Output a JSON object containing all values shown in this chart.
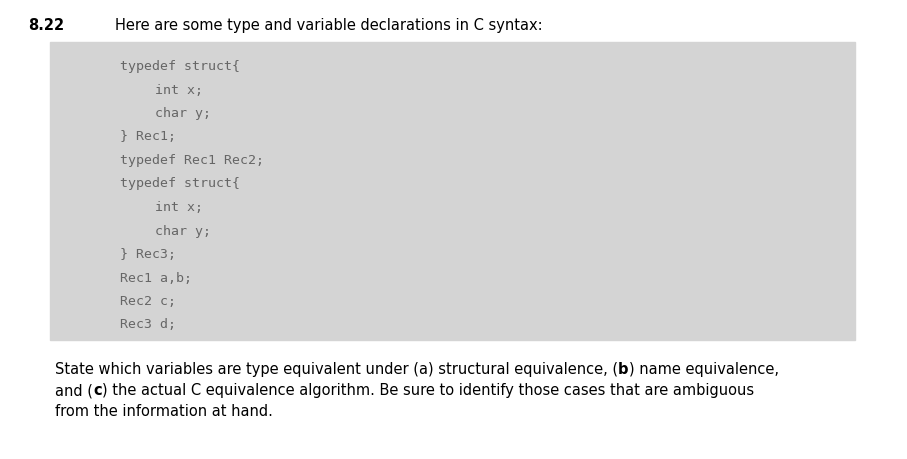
{
  "problem_number": "8.22",
  "header_text": "Here are some type and variable declarations in C syntax:",
  "code_lines": [
    {
      "text": "typedef struct{",
      "indent": 0
    },
    {
      "text": "int x;",
      "indent": 1
    },
    {
      "text": "char y;",
      "indent": 1
    },
    {
      "text": "} Rec1;",
      "indent": 0
    },
    {
      "text": "typedef Rec1 Rec2;",
      "indent": 0
    },
    {
      "text": "typedef struct{",
      "indent": 0
    },
    {
      "text": "int x;",
      "indent": 1
    },
    {
      "text": "char y;",
      "indent": 1
    },
    {
      "text": "} Rec3;",
      "indent": 0
    },
    {
      "text": "Rec1 a,b;",
      "indent": 0
    },
    {
      "text": "Rec2 c;",
      "indent": 0
    },
    {
      "text": "Rec3 d;",
      "indent": 0
    }
  ],
  "code_box_bg": "#d4d4d4",
  "page_bg": "#ffffff",
  "code_text_color": "#666666",
  "black": "#000000"
}
